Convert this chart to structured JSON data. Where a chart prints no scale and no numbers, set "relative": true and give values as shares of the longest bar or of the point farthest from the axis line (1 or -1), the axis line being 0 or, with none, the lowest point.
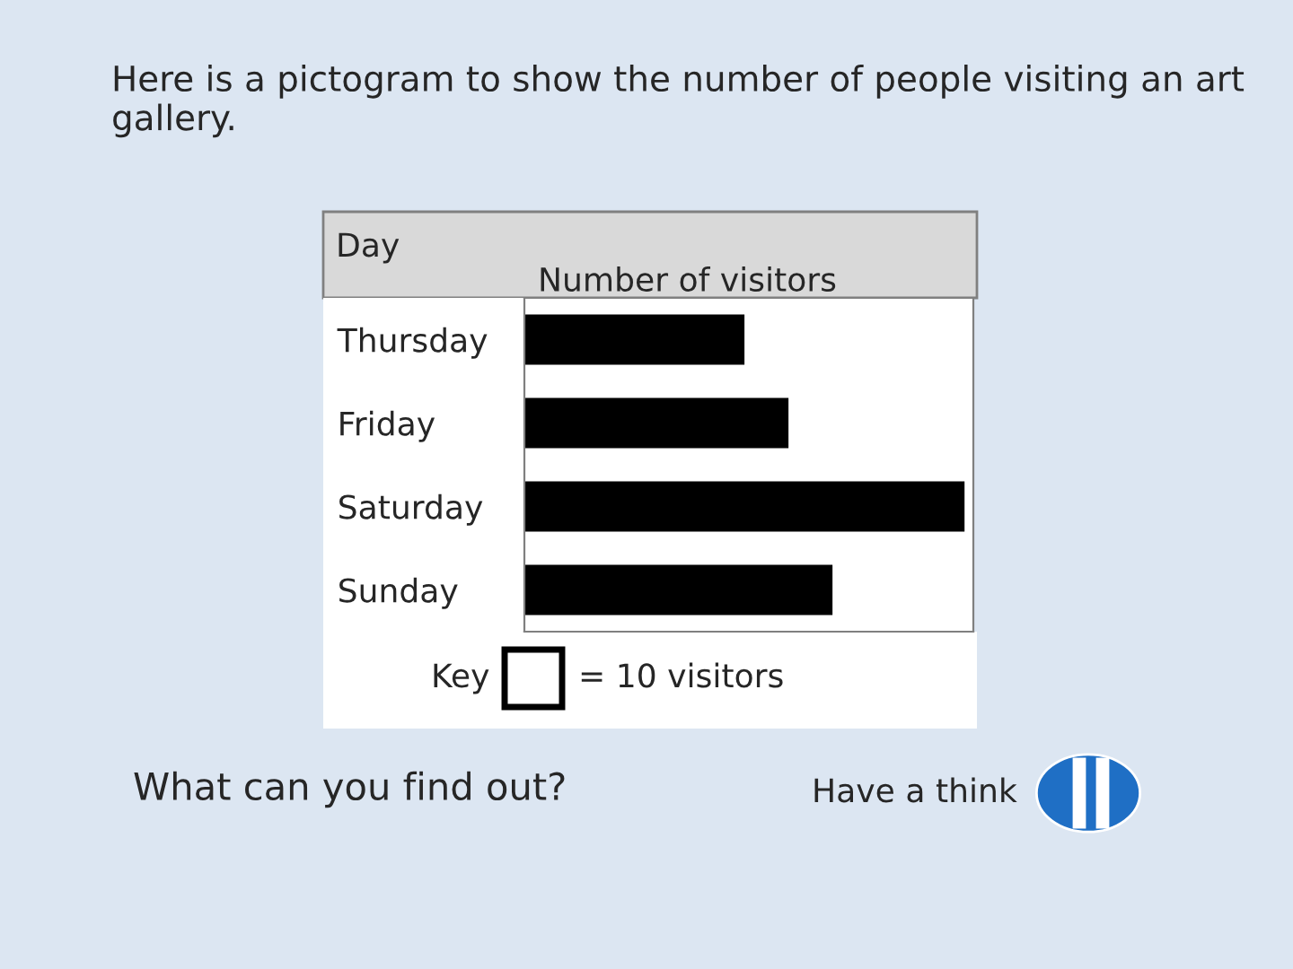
{
  "chart_data": {
    "type": "bar",
    "orientation": "horizontal",
    "relative": true,
    "title": "Here is a pictogram to show the number of people visiting an art gallery.",
    "ylabel": "Day",
    "xlabel": "Number of visitors",
    "categories": [
      "Thursday",
      "Friday",
      "Saturday",
      "Sunday"
    ],
    "values": [
      0.5,
      0.6,
      1,
      0.7
    ],
    "color": "#000000",
    "annotations": [
      "Key",
      "= 10 visitors",
      "What can you find out?",
      "Have a think"
    ]
  }
}
